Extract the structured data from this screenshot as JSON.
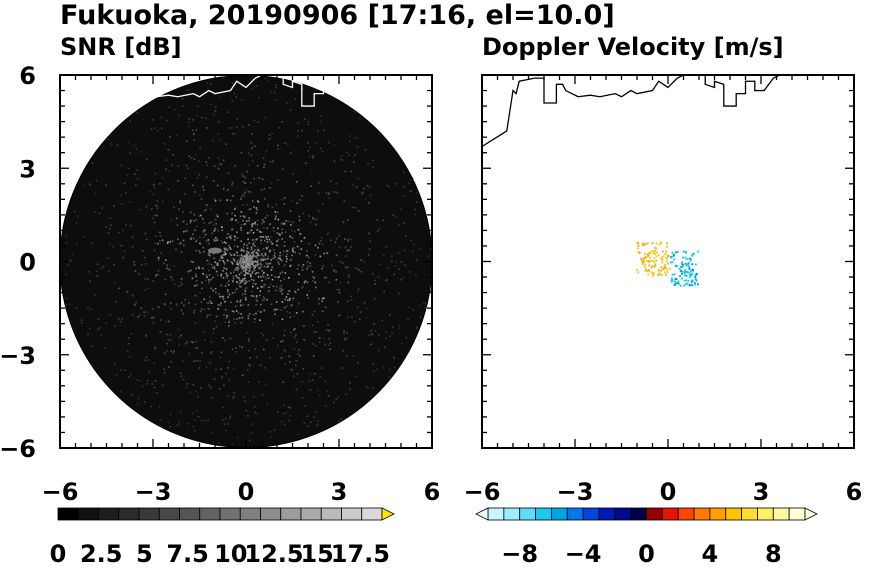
{
  "figure": {
    "title": "Fukuoka, 20190906 [17:16, el=10.0]"
  },
  "chart_data": [
    {
      "type": "heatmap",
      "title": "SNR [dB]",
      "xlabel": "",
      "ylabel": "",
      "xlim": [
        -6,
        6
      ],
      "ylim": [
        -6,
        6
      ],
      "xticks": [
        "−6",
        "−3",
        "0",
        "3",
        "6"
      ],
      "yticks": [
        "6",
        "3",
        "0",
        "−3",
        "−6"
      ],
      "range_km": 6,
      "background_color": "#0d0d0d",
      "coastline_color": "#ffffff",
      "colorbar": {
        "min": 0,
        "max": 18.75,
        "step": 1.25,
        "extend": "max",
        "tick_values": [
          0,
          2.5,
          5,
          7.5,
          10,
          12.5,
          15,
          17.5
        ],
        "tick_labels": [
          "0",
          "2.5",
          "5",
          "7.5",
          "10",
          "12.5",
          "15",
          "17.5"
        ],
        "colors": [
          "#000000",
          "#111111",
          "#1e1e1e",
          "#2b2b2b",
          "#393939",
          "#474747",
          "#555555",
          "#636363",
          "#717171",
          "#808080",
          "#8e8e8e",
          "#9c9c9c",
          "#ababab",
          "#bababa",
          "#cacaca",
          "#dadada"
        ],
        "overflow_color": "#ffe600"
      }
    },
    {
      "type": "scatter",
      "title": "Doppler Velocity [m/s]",
      "xlabel": "",
      "ylabel": "",
      "xlim": [
        -6,
        6
      ],
      "ylim": [
        -6,
        6
      ],
      "xticks": [
        "−6",
        "−3",
        "0",
        "3",
        "6"
      ],
      "yticks": [
        "6",
        "3",
        "0",
        "−3",
        "−6"
      ],
      "coastline_color": "#000000",
      "clusters": [
        {
          "name_color": "#f5c400",
          "x_center": -0.5,
          "y_center": 0.1
        },
        {
          "name_color": "#00c8e6",
          "x_center": 0.5,
          "y_center": -0.2
        }
      ],
      "colorbar": {
        "min": -10,
        "max": 10,
        "step": 1,
        "extend": "both",
        "tick_values": [
          -8,
          -4,
          0,
          4,
          8
        ],
        "tick_labels": [
          "−8",
          "−4",
          "0",
          "4",
          "8"
        ],
        "colors": [
          "#c8f5ff",
          "#9eecff",
          "#5ddcff",
          "#1ec8f0",
          "#00a5e6",
          "#0078f0",
          "#0046dc",
          "#0019b4",
          "#000a8c",
          "#000050",
          "#960000",
          "#e61400",
          "#ff4600",
          "#ff7800",
          "#ffa000",
          "#ffc300",
          "#ffdc32",
          "#fff064",
          "#fffaa0",
          "#fffdd2"
        ],
        "under_color": "#e6faff",
        "over_color": "#fffbe6"
      }
    }
  ]
}
